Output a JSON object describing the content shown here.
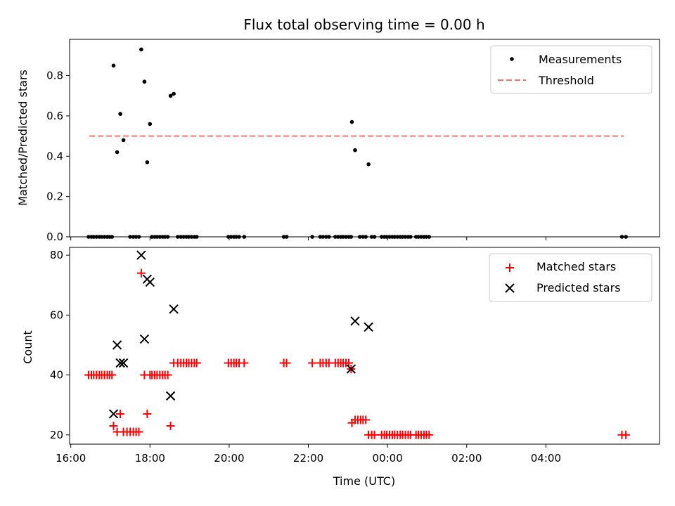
{
  "chart_data": [
    {
      "type": "scatter",
      "panel": "top",
      "title": "Flux total observing time = 0.00 h",
      "xlabel": "",
      "ylabel": "Matched/Predicted stars",
      "xlim": [
        15.97,
        30.87
      ],
      "ylim": [
        0,
        0.98
      ],
      "yticks": [
        0.0,
        0.2,
        0.4,
        0.6,
        0.8
      ],
      "ytick_labels": [
        "0.0",
        "0.2",
        "0.4",
        "0.6",
        "0.8"
      ],
      "xticks": [
        16,
        18,
        20,
        22,
        24,
        26,
        28
      ],
      "legend": {
        "position": "top-right",
        "entries": [
          {
            "label": "Measurements",
            "marker": "dot",
            "color": "#000000"
          },
          {
            "label": "Threshold",
            "marker": "dashed-line",
            "color": "#ff7070"
          }
        ]
      },
      "threshold": {
        "y": 0.5,
        "x_start": 16.47,
        "x_end": 29.97,
        "color": "#ff7070"
      },
      "series": [
        {
          "name": "Measurements",
          "color": "#000000",
          "points": [
            [
              16.45,
              0
            ],
            [
              16.52,
              0
            ],
            [
              16.58,
              0
            ],
            [
              16.65,
              0
            ],
            [
              16.72,
              0
            ],
            [
              16.78,
              0
            ],
            [
              16.85,
              0
            ],
            [
              16.92,
              0
            ],
            [
              16.98,
              0
            ],
            [
              17.04,
              0
            ],
            [
              17.08,
              0.85
            ],
            [
              17.17,
              0.42
            ],
            [
              17.25,
              0.61
            ],
            [
              17.33,
              0.48
            ],
            [
              17.5,
              0
            ],
            [
              17.58,
              0
            ],
            [
              17.65,
              0
            ],
            [
              17.72,
              0
            ],
            [
              17.78,
              0.93
            ],
            [
              17.86,
              0.77
            ],
            [
              17.93,
              0.37
            ],
            [
              18.0,
              0.56
            ],
            [
              18.05,
              0
            ],
            [
              18.12,
              0
            ],
            [
              18.18,
              0
            ],
            [
              18.25,
              0
            ],
            [
              18.32,
              0
            ],
            [
              18.38,
              0
            ],
            [
              18.45,
              0
            ],
            [
              18.52,
              0.7
            ],
            [
              18.6,
              0.71
            ],
            [
              18.7,
              0
            ],
            [
              18.78,
              0
            ],
            [
              18.85,
              0
            ],
            [
              18.92,
              0
            ],
            [
              18.98,
              0
            ],
            [
              19.05,
              0
            ],
            [
              19.12,
              0
            ],
            [
              19.18,
              0
            ],
            [
              19.98,
              0
            ],
            [
              20.05,
              0
            ],
            [
              20.12,
              0
            ],
            [
              20.18,
              0
            ],
            [
              20.25,
              0
            ],
            [
              20.38,
              0
            ],
            [
              21.38,
              0
            ],
            [
              21.45,
              0
            ],
            [
              22.1,
              0
            ],
            [
              22.3,
              0
            ],
            [
              22.37,
              0
            ],
            [
              22.45,
              0
            ],
            [
              22.52,
              0
            ],
            [
              22.68,
              0
            ],
            [
              22.75,
              0
            ],
            [
              22.82,
              0
            ],
            [
              22.88,
              0
            ],
            [
              22.95,
              0
            ],
            [
              23.02,
              0
            ],
            [
              23.08,
              0
            ],
            [
              23.1,
              0.57
            ],
            [
              23.18,
              0.43
            ],
            [
              23.52,
              0.36
            ],
            [
              23.3,
              0
            ],
            [
              23.38,
              0
            ],
            [
              23.45,
              0
            ],
            [
              23.6,
              0
            ],
            [
              23.67,
              0
            ],
            [
              23.85,
              0
            ],
            [
              23.92,
              0
            ],
            [
              23.98,
              0
            ],
            [
              24.05,
              0
            ],
            [
              24.12,
              0
            ],
            [
              24.18,
              0
            ],
            [
              24.25,
              0
            ],
            [
              24.32,
              0
            ],
            [
              24.38,
              0
            ],
            [
              24.45,
              0
            ],
            [
              24.52,
              0
            ],
            [
              24.58,
              0
            ],
            [
              24.72,
              0
            ],
            [
              24.78,
              0
            ],
            [
              24.85,
              0
            ],
            [
              24.92,
              0
            ],
            [
              24.98,
              0
            ],
            [
              25.05,
              0
            ],
            [
              29.92,
              0
            ],
            [
              30.02,
              0
            ]
          ]
        }
      ]
    },
    {
      "type": "scatter",
      "panel": "bottom",
      "xlabel": "Time (UTC)",
      "ylabel": "Count",
      "xlim": [
        15.97,
        30.87
      ],
      "ylim": [
        16.9,
        82.6
      ],
      "yticks": [
        20,
        40,
        60,
        80
      ],
      "ytick_labels": [
        "20",
        "40",
        "60",
        "80"
      ],
      "xticks": [
        16,
        18,
        20,
        22,
        24,
        26,
        28
      ],
      "xtick_labels": [
        "16:00",
        "18:00",
        "20:00",
        "22:00",
        "00:00",
        "02:00",
        "04:00"
      ],
      "legend": {
        "position": "top-right",
        "entries": [
          {
            "label": "Matched stars",
            "marker": "plus",
            "color": "#ff0000"
          },
          {
            "label": "Predicted stars",
            "marker": "x",
            "color": "#000000"
          }
        ]
      },
      "series": [
        {
          "name": "Matched stars",
          "marker": "plus",
          "color": "#ff0000",
          "points": [
            [
              16.45,
              40
            ],
            [
              16.52,
              40
            ],
            [
              16.58,
              40
            ],
            [
              16.65,
              40
            ],
            [
              16.72,
              40
            ],
            [
              16.78,
              40
            ],
            [
              16.85,
              40
            ],
            [
              16.92,
              40
            ],
            [
              16.98,
              40
            ],
            [
              17.04,
              40
            ],
            [
              17.08,
              23
            ],
            [
              17.17,
              21
            ],
            [
              17.25,
              27
            ],
            [
              17.33,
              21
            ],
            [
              17.42,
              21
            ],
            [
              17.5,
              21
            ],
            [
              17.58,
              21
            ],
            [
              17.65,
              21
            ],
            [
              17.72,
              21
            ],
            [
              17.78,
              74
            ],
            [
              17.86,
              40
            ],
            [
              17.93,
              27
            ],
            [
              18.0,
              40
            ],
            [
              18.05,
              40
            ],
            [
              18.12,
              40
            ],
            [
              18.18,
              40
            ],
            [
              18.25,
              40
            ],
            [
              18.32,
              40
            ],
            [
              18.38,
              40
            ],
            [
              18.45,
              40
            ],
            [
              18.52,
              23
            ],
            [
              18.6,
              44
            ],
            [
              18.7,
              44
            ],
            [
              18.78,
              44
            ],
            [
              18.85,
              44
            ],
            [
              18.92,
              44
            ],
            [
              18.98,
              44
            ],
            [
              19.05,
              44
            ],
            [
              19.12,
              44
            ],
            [
              19.18,
              44
            ],
            [
              19.98,
              44
            ],
            [
              20.05,
              44
            ],
            [
              20.12,
              44
            ],
            [
              20.18,
              44
            ],
            [
              20.25,
              44
            ],
            [
              20.38,
              44
            ],
            [
              21.38,
              44
            ],
            [
              21.45,
              44
            ],
            [
              22.1,
              44
            ],
            [
              22.3,
              44
            ],
            [
              22.37,
              44
            ],
            [
              22.45,
              44
            ],
            [
              22.52,
              44
            ],
            [
              22.68,
              44
            ],
            [
              22.75,
              44
            ],
            [
              22.82,
              44
            ],
            [
              22.88,
              44
            ],
            [
              22.95,
              44
            ],
            [
              23.02,
              44
            ],
            [
              23.08,
              42
            ],
            [
              23.1,
              24
            ],
            [
              23.18,
              25
            ],
            [
              23.25,
              25
            ],
            [
              23.32,
              25
            ],
            [
              23.38,
              25
            ],
            [
              23.45,
              25
            ],
            [
              23.52,
              20
            ],
            [
              23.6,
              20
            ],
            [
              23.67,
              20
            ],
            [
              23.85,
              20
            ],
            [
              23.92,
              20
            ],
            [
              23.98,
              20
            ],
            [
              24.05,
              20
            ],
            [
              24.12,
              20
            ],
            [
              24.18,
              20
            ],
            [
              24.25,
              20
            ],
            [
              24.32,
              20
            ],
            [
              24.38,
              20
            ],
            [
              24.45,
              20
            ],
            [
              24.52,
              20
            ],
            [
              24.58,
              20
            ],
            [
              24.72,
              20
            ],
            [
              24.78,
              20
            ],
            [
              24.85,
              20
            ],
            [
              24.92,
              20
            ],
            [
              24.98,
              20
            ],
            [
              25.05,
              20
            ],
            [
              29.92,
              20
            ],
            [
              30.02,
              20
            ]
          ]
        },
        {
          "name": "Predicted stars",
          "marker": "x",
          "color": "#000000",
          "points": [
            [
              17.08,
              27
            ],
            [
              17.17,
              50
            ],
            [
              17.25,
              44
            ],
            [
              17.33,
              44
            ],
            [
              17.78,
              80
            ],
            [
              17.86,
              52
            ],
            [
              17.93,
              72
            ],
            [
              18.0,
              71
            ],
            [
              18.52,
              33
            ],
            [
              18.6,
              62
            ],
            [
              23.08,
              42
            ],
            [
              23.18,
              58
            ],
            [
              23.52,
              56
            ]
          ]
        }
      ]
    }
  ]
}
